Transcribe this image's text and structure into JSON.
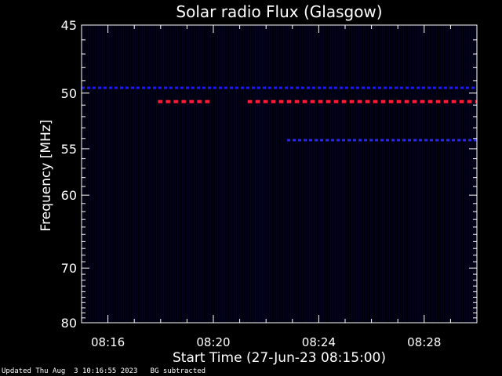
{
  "chart_data": {
    "type": "heatmap",
    "title": "Solar radio Flux (Glasgow)",
    "xlabel": "Start Time (27-Jun-23 08:15:00)",
    "ylabel": "Frequency [MHz]",
    "x_axis": {
      "start_minutes": 15.0,
      "end_minutes": 30.0,
      "major_ticks": [
        {
          "minutes": 16,
          "label": "08:16"
        },
        {
          "minutes": 20,
          "label": "08:20"
        },
        {
          "minutes": 24,
          "label": "08:24"
        },
        {
          "minutes": 28,
          "label": "08:28"
        }
      ]
    },
    "y_axis": {
      "range_mhz": [
        45,
        80
      ],
      "scale": "reciprocal",
      "major_ticks": [
        {
          "value": 45,
          "label": "45"
        },
        {
          "value": 50,
          "label": "50"
        },
        {
          "value": 55,
          "label": "55"
        },
        {
          "value": 60,
          "label": "60"
        },
        {
          "value": 70,
          "label": "70"
        },
        {
          "value": 80,
          "label": "80"
        }
      ]
    },
    "features": [
      {
        "name": "intermittent interference",
        "frequency_mhz": 49.6,
        "start_minutes": 15.0,
        "end_minutes": 30.0,
        "intensity": "medium",
        "color": "#1a1aff"
      },
      {
        "name": "interference",
        "frequency_mhz": 50.7,
        "start_minutes": 17.9,
        "end_minutes": 20.0,
        "intensity": "high",
        "color": "#ff1a3a"
      },
      {
        "name": "interference",
        "frequency_mhz": 50.7,
        "start_minutes": 21.3,
        "end_minutes": 30.0,
        "intensity": "high",
        "color": "#ff1a3a"
      },
      {
        "name": "interference",
        "frequency_mhz": 54.2,
        "start_minutes": 22.8,
        "end_minutes": 30.0,
        "intensity": "medium",
        "color": "#2a2aee"
      }
    ],
    "background_color": "#03031a",
    "grid": false
  },
  "footer": {
    "updated": "Updated Thu Aug  3 10:16:55 2023",
    "note": "BG subtracted"
  }
}
